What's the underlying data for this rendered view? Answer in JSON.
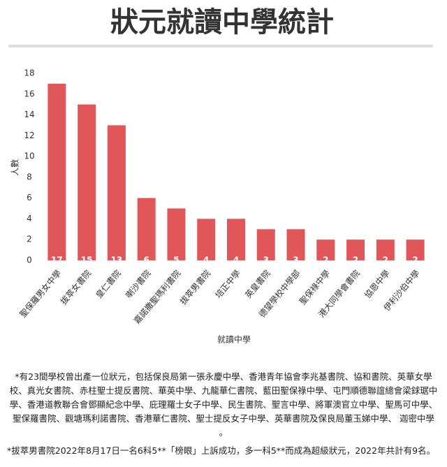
{
  "chart_data": {
    "type": "bar",
    "title": "狀元就讀中學統計",
    "x_label": "就讀中學",
    "y_label": "人數",
    "categories": [
      "聖保羅男女中學",
      "拔萃女書院",
      "皇仁書院",
      "喇沙書院",
      "嘉諾撒聖瑪利書院",
      "拔萃男書院",
      "培正中學",
      "英皇書院",
      "德望學校中學部",
      "聖保祿中學",
      "港大同學會書院",
      "協恩中學",
      "伊利沙伯中學"
    ],
    "values": [
      17,
      15,
      13,
      6,
      5,
      4,
      4,
      3,
      3,
      2,
      2,
      2,
      2
    ],
    "color": "#e15759",
    "ylim": [
      0,
      18
    ],
    "yticks": [
      0,
      2,
      4,
      6,
      8,
      10,
      12,
      14,
      16,
      18
    ],
    "grid": false
  },
  "notes": [
    "*有23間學校曾出產一位狀元，包括保良局第一張永慶中學、香港青年協會李兆基書院、協和書院、英華女學校、真光女書院、赤柱聖士提反書院、華英中學、九龍華仁書院、藍田聖保祿中學、屯門順德聯誼總會梁銶琚中學、香港道教聯合會鄧顯紀念中學、庇理羅士女子中學、民生書院、聖言中學、將軍澳官立中學、聖馬可中學、聖保羅書院、觀塘瑪利諾書院、香港華仁書院、聖士提反女子中學、英華書院及保良局董玉娣中學、 迦密中學 。",
    "*拔萃男書院2022年8月17日一名6科5**「榜眼」上訴成功，多一科5**而成為超級狀元，2022年共計有9名。"
  ]
}
